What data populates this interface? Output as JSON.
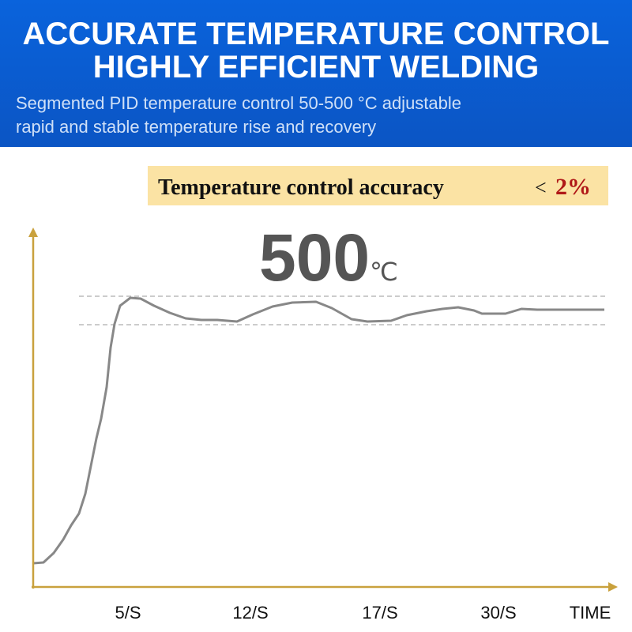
{
  "header": {
    "title": [
      "ACCURATE TEMPERATURE CONTROL",
      "HIGHLY EFFICIENT WELDING"
    ],
    "subtitle": [
      "Segmented PID temperature control 50-500 °C adjustable",
      "rapid and stable temperature rise and recovery"
    ]
  },
  "banner": {
    "label": "Temperature control accuracy",
    "symbol": "<",
    "value": "2%"
  },
  "graph": {
    "target": "500",
    "unit": "℃",
    "x_labels": [
      "5/S",
      "12/S",
      "17/S",
      "30/S",
      "TIME"
    ]
  }
}
